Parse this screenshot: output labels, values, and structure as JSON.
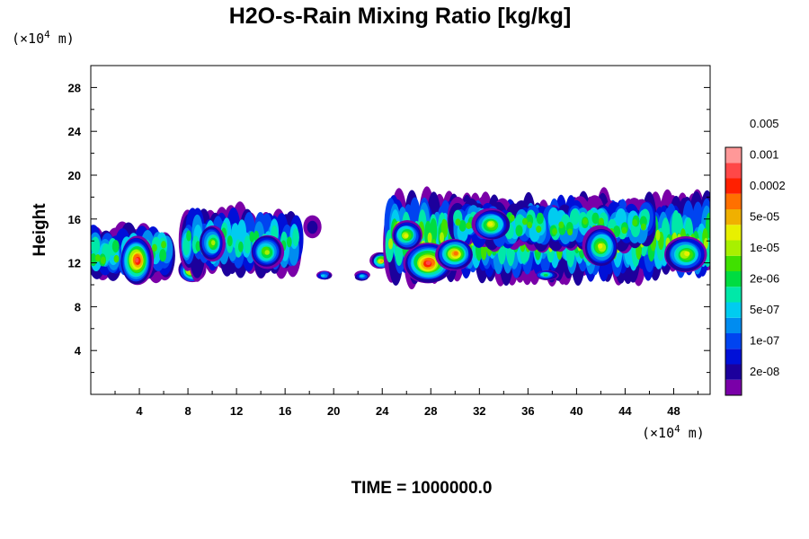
{
  "chart_data": {
    "type": "heatmap",
    "title": "H2O-s-Rain Mixing Ratio [kg/kg]",
    "ylabel": "Height",
    "xunit_prefix": "(×10",
    "xunit_exp": "4",
    "xunit_suffix": " m)",
    "yunit_prefix": "(×10",
    "yunit_exp": "4",
    "yunit_suffix": " m)",
    "xlim": [
      0,
      51
    ],
    "ylim": [
      0,
      30
    ],
    "xticks": [
      4,
      8,
      12,
      16,
      20,
      24,
      28,
      32,
      36,
      40,
      44,
      48
    ],
    "xtick_labels": [
      "4",
      "8",
      "12",
      "16",
      "20",
      "24",
      "28",
      "32",
      "36",
      "40",
      "44",
      "48"
    ],
    "yticks": [
      4,
      8,
      12,
      16,
      20,
      24,
      28
    ],
    "ytick_labels": [
      "4",
      "8",
      "12",
      "16",
      "20",
      "24",
      "28"
    ],
    "colorbar": {
      "colors": [
        "#7a00a8",
        "#1c009c",
        "#0010d8",
        "#0044f0",
        "#008cf0",
        "#00ccf0",
        "#00e8a8",
        "#00dc40",
        "#40e000",
        "#a8f000",
        "#e8f000",
        "#f0b000",
        "#ff7000",
        "#ff2000",
        "#ff4848",
        "#ff9898"
      ],
      "labels": [
        "2e-08",
        "1e-07",
        "5e-07",
        "2e-06",
        "1e-05",
        "5e-05",
        "0.0002",
        "0.001",
        "0.005"
      ]
    },
    "features": [
      {
        "name": "cloud-band-left",
        "x_range": [
          0,
          7
        ],
        "y_range": [
          10.5,
          15.5
        ],
        "peak": 14
      },
      {
        "name": "cloud-cell-x4",
        "x_range": [
          2.5,
          5
        ],
        "y_range": [
          10,
          14.5
        ],
        "peak": 14
      },
      {
        "name": "cloud-cell-x8",
        "x_range": [
          7,
          9.5
        ],
        "y_range": [
          10,
          12.5
        ],
        "peak": 13
      },
      {
        "name": "anvil-x8-17",
        "x_range": [
          7.5,
          17
        ],
        "y_range": [
          11,
          17
        ],
        "peak": 9
      },
      {
        "name": "fragment-x18",
        "x_range": [
          17.5,
          19
        ],
        "y_range": [
          14,
          16.5
        ],
        "peak": 1
      },
      {
        "name": "fragment-x19",
        "x_range": [
          18.5,
          19.8
        ],
        "y_range": [
          10.5,
          11.5
        ],
        "peak": 5
      },
      {
        "name": "fragment-x23",
        "x_range": [
          21.8,
          23.2
        ],
        "y_range": [
          10.5,
          11.2
        ],
        "peak": 5
      },
      {
        "name": "fragment-x24",
        "x_range": [
          23,
          25
        ],
        "y_range": [
          11.5,
          13
        ],
        "peak": 11
      },
      {
        "name": "main-cluster",
        "x_range": [
          24.5,
          51
        ],
        "y_range": [
          10.5,
          18.5
        ],
        "peak": 12
      },
      {
        "name": "core-x28",
        "x_range": [
          26,
          30
        ],
        "y_range": [
          10.5,
          14
        ],
        "peak": 14
      },
      {
        "name": "fragment-x37",
        "x_range": [
          36.5,
          38.5
        ],
        "y_range": [
          10.5,
          11.5
        ],
        "peak": 7
      },
      {
        "name": "right-edge-band",
        "x_range": [
          43,
          51
        ],
        "y_range": [
          10.5,
          15.5
        ],
        "peak": 10
      }
    ]
  },
  "footer": {
    "time_text": "TIME = 1000000.0"
  }
}
